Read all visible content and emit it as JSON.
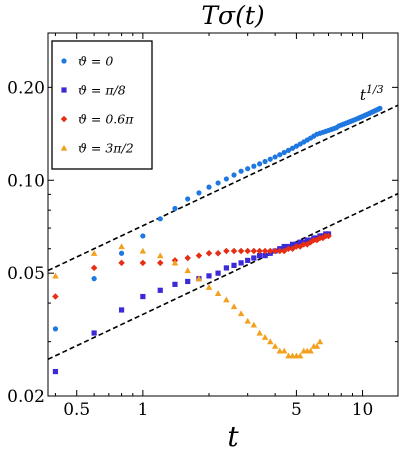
{
  "chart_data": {
    "type": "scatter",
    "title": "Tσ(t)",
    "xlabel": "t",
    "ylabel": "",
    "x_scale": "log",
    "y_scale": "log",
    "xlim": [
      0.37,
      14.5
    ],
    "ylim": [
      0.02,
      0.3
    ],
    "x_ticks": [
      {
        "value": 0.5,
        "label": "0.5"
      },
      {
        "value": 1,
        "label": "1"
      },
      {
        "value": 5,
        "label": "5"
      },
      {
        "value": 10,
        "label": "10"
      }
    ],
    "y_ticks": [
      {
        "value": 0.02,
        "label": "0.02"
      },
      {
        "value": 0.05,
        "label": "0.05"
      },
      {
        "value": 0.1,
        "label": "0.10"
      },
      {
        "value": 0.2,
        "label": "0.20"
      }
    ],
    "legend_position": "top-left",
    "series": [
      {
        "name": "ϑ = 0",
        "color": "#1f78e0",
        "marker": "circle",
        "x": [
          0.4,
          0.6,
          0.8,
          1.0,
          1.2,
          1.4,
          1.6,
          1.8,
          2.0,
          2.2,
          2.4,
          2.6,
          2.8,
          3.0,
          3.2,
          3.4,
          3.6,
          3.8,
          4.0,
          4.2,
          4.4,
          4.6,
          4.8,
          5.0,
          5.2,
          5.4,
          5.6,
          5.8,
          6.0,
          6.2,
          6.4,
          6.6,
          6.8,
          7.0,
          7.2,
          7.4,
          7.6,
          7.8,
          8.0,
          8.2,
          8.4,
          8.6,
          8.8,
          9.0,
          9.2,
          9.4,
          9.6,
          9.8,
          10.0,
          10.2,
          10.4,
          10.6,
          10.8,
          11.0,
          11.2,
          11.4,
          11.6,
          11.8,
          12.0
        ],
        "y": [
          0.033,
          0.048,
          0.058,
          0.066,
          0.075,
          0.081,
          0.087,
          0.091,
          0.095,
          0.098,
          0.101,
          0.104,
          0.107,
          0.109,
          0.111,
          0.113,
          0.115,
          0.117,
          0.119,
          0.121,
          0.123,
          0.125,
          0.127,
          0.129,
          0.131,
          0.133,
          0.135,
          0.137,
          0.139,
          0.141,
          0.142,
          0.143,
          0.144,
          0.145,
          0.146,
          0.147,
          0.148,
          0.15,
          0.151,
          0.152,
          0.153,
          0.154,
          0.155,
          0.156,
          0.157,
          0.158,
          0.159,
          0.16,
          0.161,
          0.162,
          0.163,
          0.164,
          0.165,
          0.166,
          0.167,
          0.168,
          0.169,
          0.17,
          0.171
        ]
      },
      {
        "name": "ϑ = π/8",
        "color": "#3b2ad6",
        "marker": "square",
        "x": [
          0.4,
          0.6,
          0.8,
          1.0,
          1.2,
          1.4,
          1.6,
          1.8,
          2.0,
          2.2,
          2.4,
          2.6,
          2.8,
          3.0,
          3.2,
          3.4,
          3.6,
          3.8,
          4.0,
          4.2,
          4.4,
          4.6,
          4.8,
          5.0,
          5.2,
          5.4,
          5.6,
          5.8,
          6.0,
          6.2,
          6.4,
          6.6,
          6.8,
          7.0
        ],
        "y": [
          0.024,
          0.032,
          0.038,
          0.042,
          0.044,
          0.046,
          0.047,
          0.048,
          0.049,
          0.05,
          0.052,
          0.053,
          0.054,
          0.055,
          0.056,
          0.057,
          0.057,
          0.058,
          0.059,
          0.06,
          0.061,
          0.061,
          0.062,
          0.062,
          0.063,
          0.063,
          0.064,
          0.064,
          0.065,
          0.065,
          0.066,
          0.066,
          0.067,
          0.067
        ]
      },
      {
        "name": "ϑ = 0.6π",
        "color": "#e62e14",
        "marker": "diamond",
        "x": [
          0.4,
          0.6,
          0.8,
          1.0,
          1.2,
          1.4,
          1.6,
          1.8,
          2.0,
          2.2,
          2.4,
          2.6,
          2.8,
          3.0,
          3.2,
          3.4,
          3.6,
          3.8,
          4.0,
          4.2,
          4.4,
          4.6,
          4.8,
          5.0,
          5.2,
          5.4,
          5.6,
          5.8,
          6.0,
          6.2,
          6.4,
          6.6,
          6.8,
          7.0
        ],
        "y": [
          0.042,
          0.052,
          0.054,
          0.054,
          0.054,
          0.055,
          0.056,
          0.057,
          0.058,
          0.058,
          0.059,
          0.059,
          0.059,
          0.059,
          0.059,
          0.059,
          0.059,
          0.059,
          0.059,
          0.059,
          0.059,
          0.06,
          0.06,
          0.061,
          0.061,
          0.062,
          0.062,
          0.063,
          0.064,
          0.064,
          0.065,
          0.065,
          0.066,
          0.066
        ]
      },
      {
        "name": "ϑ = 3π/2",
        "color": "#f2a11e",
        "marker": "triangle",
        "x": [
          0.4,
          0.6,
          0.8,
          1.0,
          1.2,
          1.4,
          1.6,
          1.8,
          2.0,
          2.2,
          2.4,
          2.6,
          2.8,
          3.0,
          3.2,
          3.4,
          3.6,
          3.8,
          4.0,
          4.2,
          4.4,
          4.6,
          4.8,
          5.0,
          5.2,
          5.4,
          5.6,
          5.8,
          6.0,
          6.2,
          6.4
        ],
        "y": [
          0.049,
          0.058,
          0.061,
          0.059,
          0.057,
          0.054,
          0.051,
          0.048,
          0.045,
          0.043,
          0.041,
          0.039,
          0.037,
          0.035,
          0.034,
          0.032,
          0.031,
          0.03,
          0.029,
          0.028,
          0.028,
          0.027,
          0.027,
          0.027,
          0.027,
          0.028,
          0.028,
          0.028,
          0.029,
          0.029,
          0.03
        ]
      }
    ],
    "reference_lines": [
      {
        "name": "upper-guide",
        "style": "dashed",
        "color": "#000000",
        "x": [
          0.37,
          14.5
        ],
        "y": [
          0.051,
          0.175
        ]
      },
      {
        "name": "lower-guide",
        "style": "dashed",
        "color": "#000000",
        "x": [
          0.37,
          14.5
        ],
        "y": [
          0.0263,
          0.0905
        ]
      }
    ],
    "annotations": [
      {
        "text_base": "t",
        "text_sup": "1/3",
        "x": 10.8,
        "y": 0.19
      }
    ],
    "grid": false
  }
}
